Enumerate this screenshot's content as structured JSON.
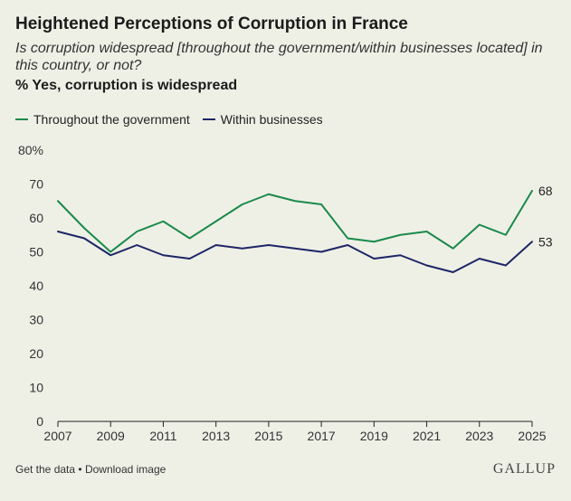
{
  "header": {
    "title": "Heightened Perceptions of Corruption in France",
    "subtitle": "Is corruption widespread [throughout the government/within businesses located] in this country, or not?",
    "measure": "% Yes, corruption is widespread"
  },
  "legend": {
    "items": [
      {
        "label": "Throughout the government",
        "color": "#1a8a4a"
      },
      {
        "label": "Within businesses",
        "color": "#1d2666"
      }
    ]
  },
  "footer": {
    "get_data": "Get the data",
    "separator": "•",
    "download": "Download image",
    "brand": "GALLUP"
  },
  "chart_data": {
    "type": "line",
    "title": "Heightened Perceptions of Corruption in France",
    "xlabel": "",
    "ylabel": "% Yes, corruption is widespread",
    "x": [
      2007,
      2008,
      2009,
      2010,
      2011,
      2012,
      2013,
      2014,
      2015,
      2016,
      2017,
      2018,
      2019,
      2020,
      2021,
      2022,
      2023,
      2024,
      2025
    ],
    "series": [
      {
        "name": "Throughout the government",
        "color": "#1a8a4a",
        "values": [
          65,
          57,
          50,
          56,
          59,
          54,
          59,
          64,
          67,
          65,
          64,
          54,
          53,
          55,
          56,
          51,
          58,
          55,
          68
        ]
      },
      {
        "name": "Within businesses",
        "color": "#1d2666",
        "values": [
          56,
          54,
          49,
          52,
          49,
          48,
          52,
          51,
          52,
          51,
          50,
          52,
          48,
          49,
          46,
          44,
          48,
          46,
          53
        ]
      }
    ],
    "end_labels": [
      "68",
      "53"
    ],
    "xticks": [
      "2007",
      "2009",
      "2011",
      "2013",
      "2015",
      "2017",
      "2019",
      "2021",
      "2023",
      "2025"
    ],
    "yticks": [
      "0",
      "10",
      "20",
      "30",
      "40",
      "50",
      "60",
      "70",
      "80%"
    ],
    "ylim": [
      0,
      80
    ],
    "xlim": [
      2007,
      2025
    ],
    "grid": false
  }
}
